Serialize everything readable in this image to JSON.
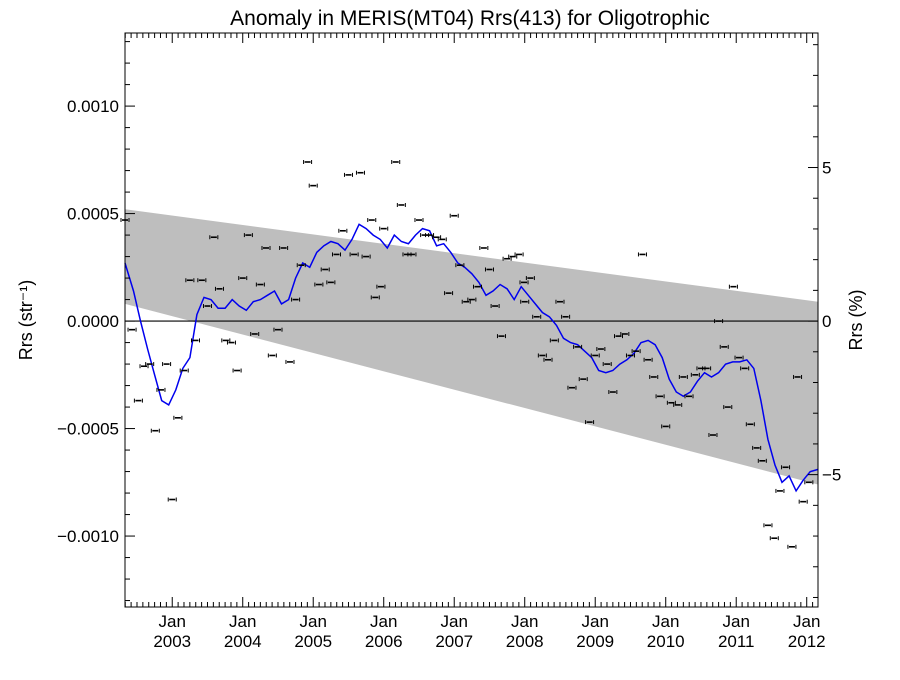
{
  "chart_data": {
    "type": "line",
    "title": "Anomaly in MERIS(MT04) Rrs(413) for Oligotrophic",
    "ylabel": "Rrs (str⁻¹)",
    "ylabel_right": "Rrs (%)",
    "ylim": [
      -0.00133,
      0.00134
    ],
    "y_ticks": [
      0.001,
      0.0005,
      0.0,
      -0.0005,
      -0.001
    ],
    "y_tick_labels": [
      "0.0010",
      "0.0005",
      "0.0000",
      "−0.0005",
      "−0.0010"
    ],
    "y2_ticks": [
      5,
      0,
      -5
    ],
    "y2_tick_labels": [
      "5",
      "0",
      "−5"
    ],
    "y2_pct_per_str": 7000,
    "xlim": [
      2002.33,
      2012.16
    ],
    "x_ticks": [
      2003,
      2004,
      2005,
      2006,
      2007,
      2008,
      2009,
      2010,
      2011,
      2012
    ],
    "x_tick_month": "Jan",
    "x_tick_years": [
      "2003",
      "2004",
      "2005",
      "2006",
      "2007",
      "2008",
      "2009",
      "2010",
      "2011",
      "2012"
    ],
    "band": {
      "start": [
        2002.33,
        0.00052,
        8e-05
      ],
      "end": [
        2012.16,
        9e-05,
        -0.00076
      ],
      "color": "#bebebe"
    },
    "smoothed_color": "#0000ee",
    "points_color": "#000000",
    "smoothed": [
      [
        2002.33,
        0.00027
      ],
      [
        2002.45,
        0.00014
      ],
      [
        2002.55,
        0.0
      ],
      [
        2002.65,
        -0.00013
      ],
      [
        2002.75,
        -0.00025
      ],
      [
        2002.85,
        -0.00037
      ],
      [
        2002.95,
        -0.00039
      ],
      [
        2003.05,
        -0.00032
      ],
      [
        2003.15,
        -0.00022
      ],
      [
        2003.25,
        -0.00017
      ],
      [
        2003.35,
        3e-05
      ],
      [
        2003.45,
        0.00011
      ],
      [
        2003.55,
        0.0001
      ],
      [
        2003.65,
        6e-05
      ],
      [
        2003.75,
        6e-05
      ],
      [
        2003.85,
        0.0001
      ],
      [
        2003.95,
        7e-05
      ],
      [
        2004.05,
        5e-05
      ],
      [
        2004.15,
        9e-05
      ],
      [
        2004.25,
        0.0001
      ],
      [
        2004.35,
        0.00012
      ],
      [
        2004.45,
        0.00014
      ],
      [
        2004.55,
        8e-05
      ],
      [
        2004.65,
        0.0001
      ],
      [
        2004.75,
        0.0002
      ],
      [
        2004.85,
        0.00027
      ],
      [
        2004.95,
        0.00025
      ],
      [
        2005.05,
        0.00032
      ],
      [
        2005.15,
        0.00035
      ],
      [
        2005.25,
        0.00037
      ],
      [
        2005.35,
        0.00036
      ],
      [
        2005.45,
        0.00033
      ],
      [
        2005.55,
        0.00038
      ],
      [
        2005.65,
        0.00045
      ],
      [
        2005.75,
        0.00043
      ],
      [
        2005.85,
        0.0004
      ],
      [
        2005.95,
        0.00038
      ],
      [
        2006.05,
        0.00034
      ],
      [
        2006.15,
        0.0004
      ],
      [
        2006.25,
        0.00037
      ],
      [
        2006.35,
        0.00036
      ],
      [
        2006.45,
        0.0004
      ],
      [
        2006.55,
        0.00043
      ],
      [
        2006.65,
        0.00042
      ],
      [
        2006.75,
        0.00035
      ],
      [
        2006.85,
        0.00036
      ],
      [
        2006.95,
        0.00032
      ],
      [
        2007.05,
        0.00027
      ],
      [
        2007.15,
        0.00025
      ],
      [
        2007.25,
        0.00022
      ],
      [
        2007.35,
        0.00018
      ],
      [
        2007.45,
        0.00012
      ],
      [
        2007.55,
        0.00014
      ],
      [
        2007.65,
        0.00017
      ],
      [
        2007.75,
        0.00015
      ],
      [
        2007.85,
        0.0001
      ],
      [
        2007.95,
        0.00016
      ],
      [
        2008.05,
        0.00012
      ],
      [
        2008.15,
        8e-05
      ],
      [
        2008.25,
        4e-05
      ],
      [
        2008.35,
        2e-05
      ],
      [
        2008.45,
        -2e-05
      ],
      [
        2008.55,
        -8e-05
      ],
      [
        2008.65,
        -0.0001
      ],
      [
        2008.75,
        -0.00011
      ],
      [
        2008.85,
        -0.00014
      ],
      [
        2008.95,
        -0.00017
      ],
      [
        2009.05,
        -0.00023
      ],
      [
        2009.15,
        -0.00024
      ],
      [
        2009.25,
        -0.00023
      ],
      [
        2009.35,
        -0.0002
      ],
      [
        2009.45,
        -0.00018
      ],
      [
        2009.55,
        -0.00015
      ],
      [
        2009.65,
        -0.0001
      ],
      [
        2009.75,
        -9e-05
      ],
      [
        2009.85,
        -0.00011
      ],
      [
        2009.95,
        -0.00017
      ],
      [
        2010.05,
        -0.00027
      ],
      [
        2010.15,
        -0.00033
      ],
      [
        2010.25,
        -0.00035
      ],
      [
        2010.35,
        -0.00033
      ],
      [
        2010.45,
        -0.00028
      ],
      [
        2010.55,
        -0.00024
      ],
      [
        2010.65,
        -0.00026
      ],
      [
        2010.75,
        -0.00024
      ],
      [
        2010.85,
        -0.0002
      ],
      [
        2010.95,
        -0.00019
      ],
      [
        2011.05,
        -0.00019
      ],
      [
        2011.15,
        -0.00018
      ],
      [
        2011.25,
        -0.00022
      ],
      [
        2011.35,
        -0.00037
      ],
      [
        2011.45,
        -0.00055
      ],
      [
        2011.55,
        -0.00067
      ],
      [
        2011.65,
        -0.00075
      ],
      [
        2011.75,
        -0.00072
      ],
      [
        2011.85,
        -0.00079
      ],
      [
        2011.95,
        -0.00074
      ],
      [
        2012.05,
        -0.0007
      ],
      [
        2012.16,
        -0.00069
      ]
    ],
    "points": [
      [
        2002.33,
        0.00047
      ],
      [
        2002.43,
        -4e-05
      ],
      [
        2002.52,
        -0.00037
      ],
      [
        2002.6,
        -0.00021
      ],
      [
        2002.68,
        -0.0002
      ],
      [
        2002.76,
        -0.00051
      ],
      [
        2002.84,
        -0.00032
      ],
      [
        2002.92,
        -0.0002
      ],
      [
        2003.0,
        -0.00083
      ],
      [
        2003.08,
        -0.00045
      ],
      [
        2003.17,
        -0.00023
      ],
      [
        2003.25,
        0.00019
      ],
      [
        2003.33,
        -9e-05
      ],
      [
        2003.42,
        0.00019
      ],
      [
        2003.5,
        7e-05
      ],
      [
        2003.59,
        0.00039
      ],
      [
        2003.67,
        0.00015
      ],
      [
        2003.76,
        -9e-05
      ],
      [
        2003.84,
        -0.0001
      ],
      [
        2003.92,
        -0.00023
      ],
      [
        2004.0,
        0.0002
      ],
      [
        2004.08,
        0.0004
      ],
      [
        2004.17,
        -6e-05
      ],
      [
        2004.25,
        0.00017
      ],
      [
        2004.33,
        0.00034
      ],
      [
        2004.42,
        -0.00016
      ],
      [
        2004.5,
        -4e-05
      ],
      [
        2004.58,
        0.00034
      ],
      [
        2004.67,
        -0.00019
      ],
      [
        2004.75,
        0.0001
      ],
      [
        2004.83,
        0.00026
      ],
      [
        2004.92,
        0.00074
      ],
      [
        2005.0,
        0.00063
      ],
      [
        2005.08,
        0.00017
      ],
      [
        2005.17,
        0.00024
      ],
      [
        2005.25,
        0.00018
      ],
      [
        2005.33,
        0.00031
      ],
      [
        2005.42,
        0.00042
      ],
      [
        2005.5,
        0.00068
      ],
      [
        2005.58,
        0.00031
      ],
      [
        2005.67,
        0.00069
      ],
      [
        2005.75,
        0.0003
      ],
      [
        2005.83,
        0.00047
      ],
      [
        2005.88,
        0.00011
      ],
      [
        2005.96,
        0.00016
      ],
      [
        2006.0,
        0.00043
      ],
      [
        2006.17,
        0.00074
      ],
      [
        2006.25,
        0.00054
      ],
      [
        2006.33,
        0.00031
      ],
      [
        2006.4,
        0.00031
      ],
      [
        2006.5,
        0.00047
      ],
      [
        2006.58,
        0.0004
      ],
      [
        2006.65,
        0.0004
      ],
      [
        2006.75,
        0.00039
      ],
      [
        2006.83,
        0.00038
      ],
      [
        2006.92,
        0.00013
      ],
      [
        2007.0,
        0.00049
      ],
      [
        2007.08,
        0.00026
      ],
      [
        2007.17,
        9e-05
      ],
      [
        2007.25,
        0.0001
      ],
      [
        2007.33,
        0.00016
      ],
      [
        2007.42,
        0.00034
      ],
      [
        2007.5,
        0.00024
      ],
      [
        2007.58,
        7e-05
      ],
      [
        2007.67,
        -7e-05
      ],
      [
        2007.75,
        0.00029
      ],
      [
        2007.83,
        0.0003
      ],
      [
        2007.92,
        0.00031
      ],
      [
        2007.99,
        0.00018
      ],
      [
        2008.0,
        9e-05
      ],
      [
        2008.08,
        0.0002
      ],
      [
        2008.17,
        2e-05
      ],
      [
        2008.25,
        -0.00016
      ],
      [
        2008.33,
        -0.00018
      ],
      [
        2008.42,
        -9e-05
      ],
      [
        2008.5,
        9e-05
      ],
      [
        2008.58,
        2e-05
      ],
      [
        2008.67,
        -0.00031
      ],
      [
        2008.75,
        -0.00012
      ],
      [
        2008.83,
        -0.00027
      ],
      [
        2008.92,
        -0.00047
      ],
      [
        2009.0,
        -0.00016
      ],
      [
        2009.08,
        -0.00013
      ],
      [
        2009.17,
        -0.0002
      ],
      [
        2009.25,
        -0.00033
      ],
      [
        2009.33,
        -7e-05
      ],
      [
        2009.42,
        -6e-05
      ],
      [
        2009.5,
        -0.00016
      ],
      [
        2009.58,
        -0.00014
      ],
      [
        2009.67,
        0.00031
      ],
      [
        2009.75,
        -0.00018
      ],
      [
        2009.83,
        -0.00026
      ],
      [
        2009.92,
        -0.00035
      ],
      [
        2010.0,
        -0.00049
      ],
      [
        2010.08,
        -0.00038
      ],
      [
        2010.17,
        -0.00039
      ],
      [
        2010.25,
        -0.00026
      ],
      [
        2010.33,
        -0.00035
      ],
      [
        2010.42,
        -0.00025
      ],
      [
        2010.5,
        -0.00022
      ],
      [
        2010.58,
        -0.00022
      ],
      [
        2010.67,
        -0.00053
      ],
      [
        2010.75,
        0.0
      ],
      [
        2010.83,
        -0.00012
      ],
      [
        2010.88,
        -0.0004
      ],
      [
        2010.96,
        0.00016
      ],
      [
        2011.04,
        -0.00017
      ],
      [
        2011.12,
        -0.00022
      ],
      [
        2011.2,
        -0.00048
      ],
      [
        2011.29,
        -0.00059
      ],
      [
        2011.37,
        -0.00065
      ],
      [
        2011.45,
        -0.00095
      ],
      [
        2011.54,
        -0.00101
      ],
      [
        2011.62,
        -0.00079
      ],
      [
        2011.7,
        -0.00068
      ],
      [
        2011.79,
        -0.00105
      ],
      [
        2011.87,
        -0.00026
      ],
      [
        2011.95,
        -0.00084
      ],
      [
        2012.03,
        -0.00075
      ]
    ]
  }
}
